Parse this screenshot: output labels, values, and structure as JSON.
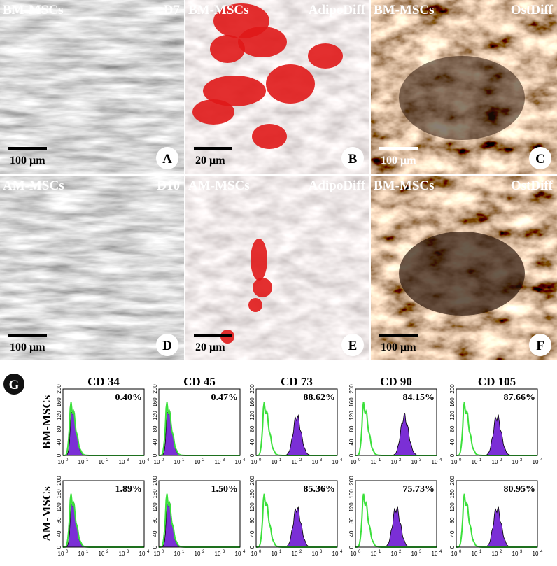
{
  "panels": [
    {
      "label": "A",
      "cell": "BM-MSCs",
      "condition": "D7",
      "scale": "100 µm"
    },
    {
      "label": "B",
      "cell": "BM-MSCs",
      "condition": "AdipoDiff",
      "scale": "20 µm"
    },
    {
      "label": "C",
      "cell": "BM-MSCs",
      "condition": "OstDiff",
      "scale": "100 µm"
    },
    {
      "label": "D",
      "cell": "AM-MSCs",
      "condition": "D10",
      "scale": "100 µm"
    },
    {
      "label": "E",
      "cell": "AM-MSCs",
      "condition": "AdipoDiff",
      "scale": "20 µm"
    },
    {
      "label": "F",
      "cell": "BM-MSCs",
      "condition": "OstDiff",
      "scale": "100 µm"
    }
  ],
  "flow": {
    "label": "G",
    "markers": [
      "CD 34",
      "CD 45",
      "CD 73",
      "CD 90",
      "CD 105"
    ],
    "rows": [
      {
        "name": "BM-MSCs",
        "percents": [
          "0.40%",
          "0.47%",
          "88.62%",
          "84.15%",
          "87.66%"
        ]
      },
      {
        "name": "AM-MSCs",
        "percents": [
          "1.89%",
          "1.50%",
          "85.36%",
          "75.73%",
          "80.95%"
        ]
      }
    ],
    "yticks": [
      "0",
      "40",
      "80",
      "120",
      "160",
      "200"
    ],
    "xtick_base": "10",
    "xtick_exponents": [
      "0",
      "1",
      "2",
      "3",
      "4"
    ]
  }
}
